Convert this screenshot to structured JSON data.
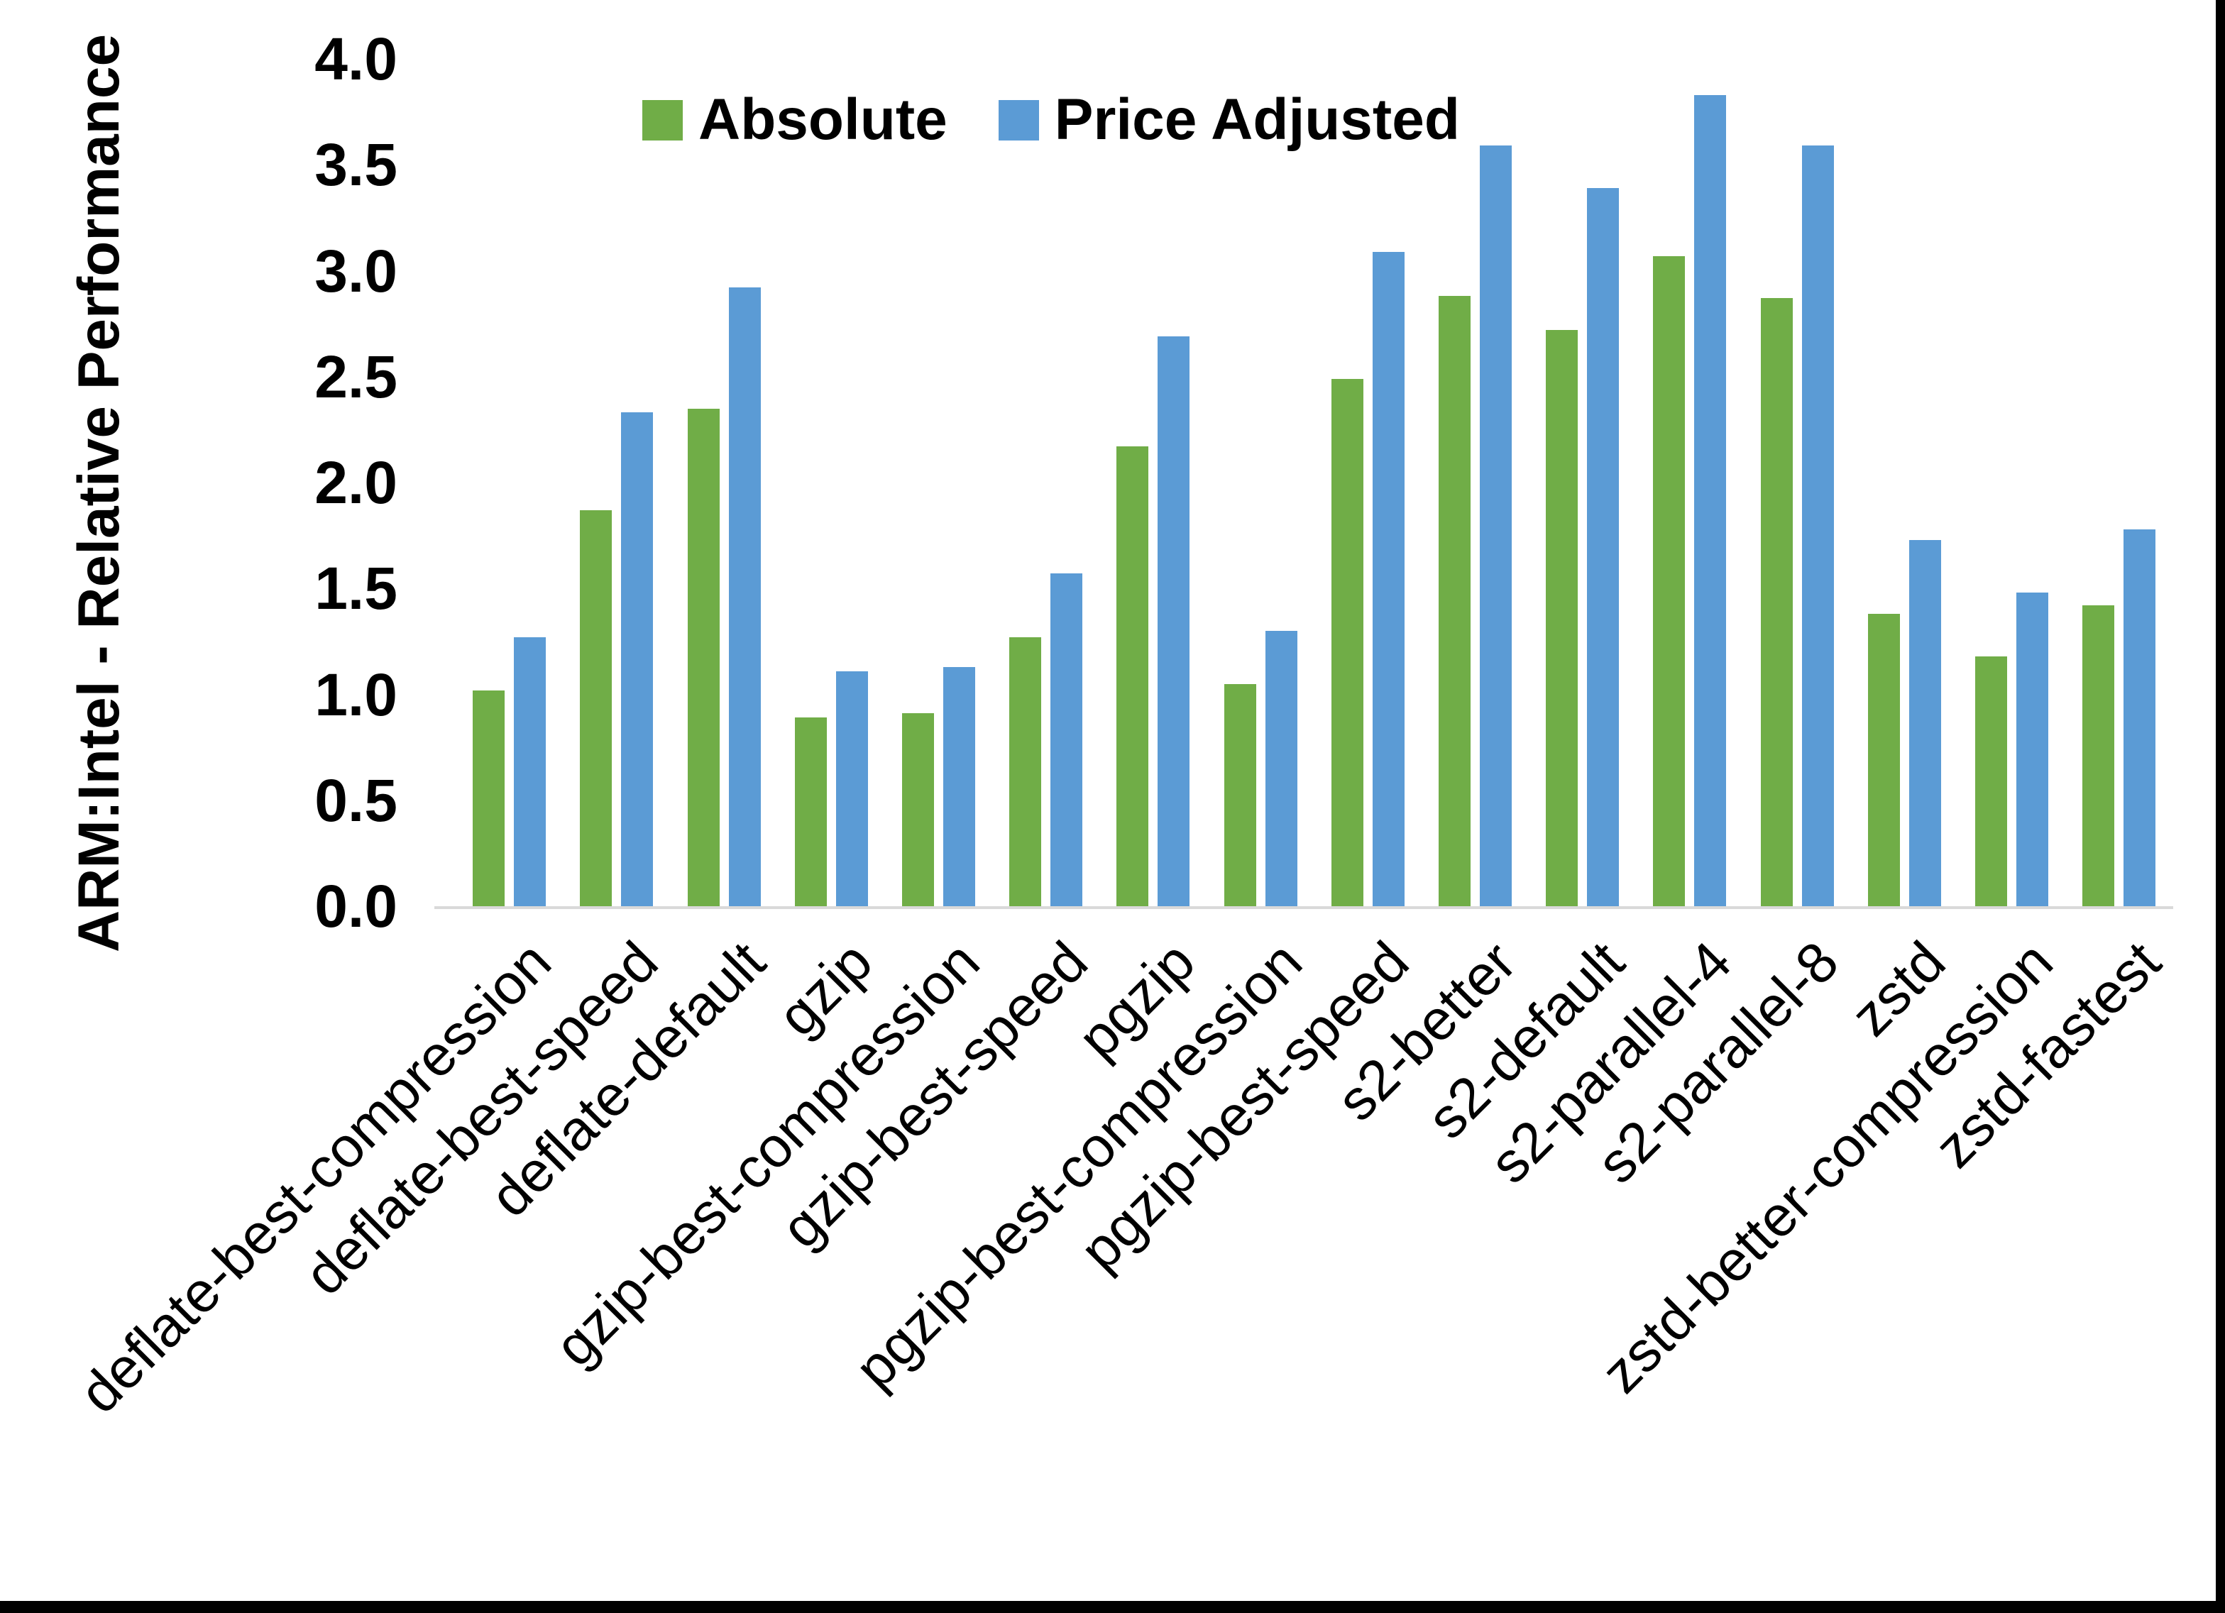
{
  "figure": {
    "background_color": "#FFFFFF",
    "border_color": "#000000"
  },
  "y_axis": {
    "title": "ARM:Intel - Relative Performance",
    "tick_labels": [
      "0.0",
      "0.5",
      "1.0",
      "1.5",
      "2.0",
      "2.5",
      "3.0",
      "3.5",
      "4.0"
    ],
    "line_color": "#D9D9D9",
    "text_color": "#000000"
  },
  "legend": {
    "items": [
      {
        "label": "Absolute",
        "color": "#70AD47"
      },
      {
        "label": "Price Adjusted",
        "color": "#5B9BD5"
      }
    ]
  },
  "chart_data": {
    "type": "bar",
    "title": "",
    "xlabel": "",
    "ylabel": "ARM:Intel - Relative Performance",
    "ylim": [
      0,
      4
    ],
    "ytick_step": 0.5,
    "grid": false,
    "legend_position": "top-center",
    "categories": [
      "deflate-best-compression",
      "deflate-best-speed",
      "deflate-default",
      "gzip",
      "gzip-best-compression",
      "gzip-best-speed",
      "pgzip",
      "pgzip-best-compression",
      "pgzip-best-speed",
      "s2-better",
      "s2-default",
      "s2-parallel-4",
      "s2-parallel-8",
      "zstd",
      "zstd-better-compression",
      "zstd-fastest"
    ],
    "series": [
      {
        "name": "Absolute",
        "color": "#70AD47",
        "values": [
          1.02,
          1.87,
          2.35,
          0.89,
          0.91,
          1.27,
          2.17,
          1.05,
          2.49,
          2.88,
          2.72,
          3.07,
          2.87,
          1.38,
          1.18,
          1.42
        ]
      },
      {
        "name": "Price Adjusted",
        "color": "#5B9BD5",
        "values": [
          1.27,
          2.33,
          2.92,
          1.11,
          1.13,
          1.57,
          2.69,
          1.3,
          3.09,
          3.59,
          3.39,
          3.83,
          3.59,
          1.73,
          1.48,
          1.78
        ]
      }
    ]
  }
}
